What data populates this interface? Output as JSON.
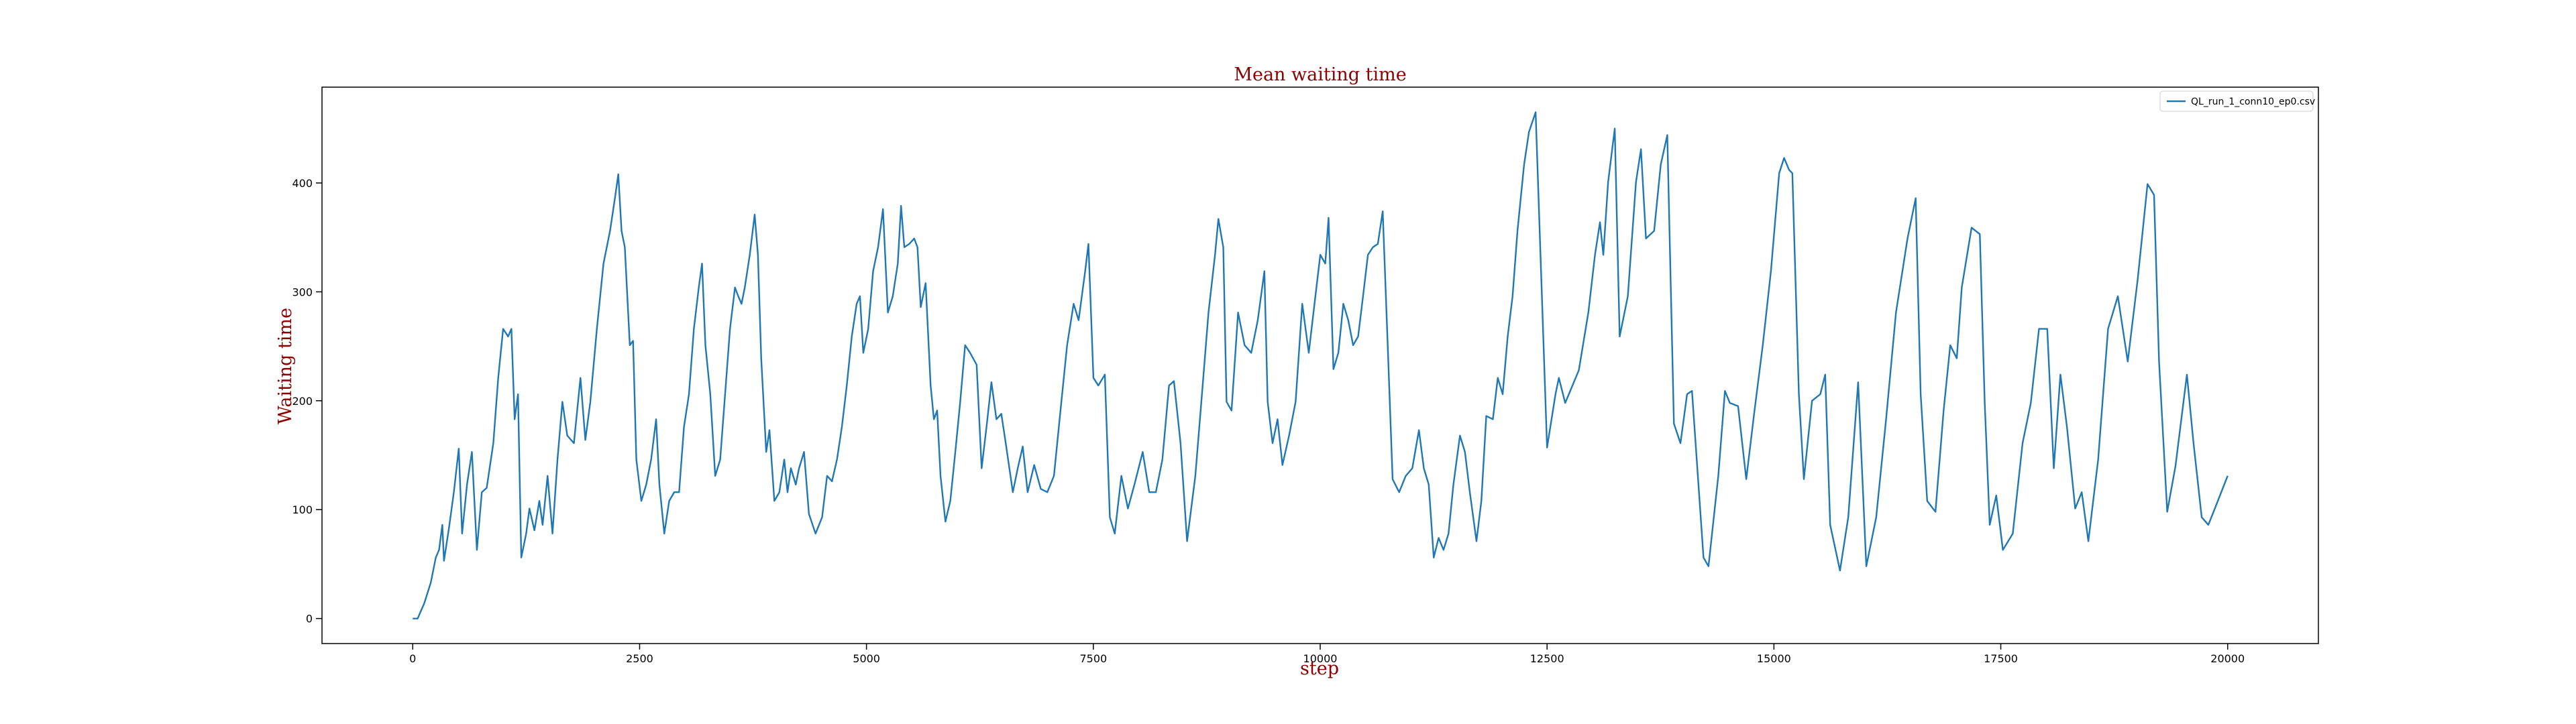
{
  "chart_data": {
    "type": "line",
    "title": "Mean waiting time",
    "x_label": "step",
    "y_label": "Waiting time",
    "xlim": [
      -1000,
      21000
    ],
    "ylim": [
      -23,
      488
    ],
    "xticks": [
      0,
      2500,
      5000,
      7500,
      10000,
      12500,
      15000,
      17500,
      20000
    ],
    "yticks": [
      0,
      100,
      200,
      300,
      400
    ],
    "grid": false,
    "legend": "upper right",
    "x": [
      0,
      54,
      127,
      199,
      254,
      290,
      326,
      344,
      399,
      453,
      507,
      544,
      598,
      652,
      707,
      761,
      815,
      888,
      942,
      996,
      1051,
      1087,
      1123,
      1160,
      1196,
      1250,
      1286,
      1341,
      1395,
      1431,
      1486,
      1540,
      1595,
      1649,
      1703,
      1776,
      1848,
      1902,
      1957,
      2029,
      2102,
      2174,
      2228,
      2265,
      2301,
      2337,
      2392,
      2428,
      2464,
      2519,
      2573,
      2627,
      2682,
      2718,
      2772,
      2826,
      2881,
      2935,
      2989,
      3044,
      3098,
      3152,
      3188,
      3225,
      3279,
      3333,
      3388,
      3442,
      3496,
      3551,
      3587,
      3623,
      3659,
      3714,
      3768,
      3804,
      3840,
      3895,
      3931,
      3985,
      4040,
      4094,
      4130,
      4167,
      4221,
      4257,
      4312,
      4366,
      4439,
      4511,
      4566,
      4620,
      4675,
      4729,
      4783,
      4838,
      4892,
      4928,
      4965,
      5019,
      5073,
      5128,
      5182,
      5236,
      5290,
      5345,
      5381,
      5417,
      5471,
      5526,
      5562,
      5598,
      5652,
      5707,
      5743,
      5779,
      5816,
      5870,
      5924,
      5979,
      6033,
      6087,
      6142,
      6214,
      6269,
      6323,
      6377,
      6432,
      6486,
      6540,
      6613,
      6667,
      6722,
      6776,
      6848,
      6921,
      6993,
      7066,
      7138,
      7211,
      7283,
      7338,
      7410,
      7446,
      7501,
      7555,
      7627,
      7682,
      7736,
      7809,
      7881,
      7953,
      8044,
      8116,
      8189,
      8261,
      8334,
      8388,
      8461,
      8533,
      8624,
      8697,
      8769,
      8841,
      8878,
      8932,
      8968,
      9023,
      9095,
      9167,
      9240,
      9312,
      9385,
      9421,
      9475,
      9530,
      9584,
      9657,
      9729,
      9802,
      9874,
      9947,
      10001,
      10056,
      10092,
      10146,
      10200,
      10255,
      10309,
      10363,
      10418,
      10472,
      10526,
      10581,
      10635,
      10689,
      10744,
      10798,
      10870,
      10943,
      11015,
      11088,
      11142,
      11196,
      11251,
      11305,
      11359,
      11414,
      11468,
      11540,
      11595,
      11649,
      11722,
      11776,
      11830,
      11903,
      11957,
      12011,
      12066,
      12120,
      12174,
      12247,
      12301,
      12374,
      12500,
      12593,
      12630,
      12700,
      12850,
      12955,
      13028,
      13083,
      13120,
      13173,
      13246,
      13300,
      13390,
      13480,
      13535,
      13590,
      13680,
      13753,
      13825,
      13898,
      13970,
      14043,
      14097,
      14224,
      14279,
      14387,
      14460,
      14514,
      14605,
      14695,
      14786,
      14877,
      14967,
      15058,
      15112,
      15167,
      15203,
      15275,
      15330,
      15420,
      15511,
      15565,
      15620,
      15728,
      15819,
      15928,
      16018,
      16127,
      16236,
      16345,
      16472,
      16562,
      16617,
      16689,
      16780,
      16870,
      16943,
      17015,
      17070,
      17178,
      17269,
      17323,
      17378,
      17450,
      17523,
      17632,
      17740,
      17831,
      17921,
      18012,
      18084,
      18157,
      18229,
      18320,
      18392,
      18465,
      18573,
      18682,
      18790,
      18899,
      19008,
      19117,
      19189,
      19244,
      19334,
      19425,
      19551,
      19624,
      19714,
      19787,
      19859,
      20000
    ],
    "series": [
      {
        "name": "QL_run_1_conn10_ep0.csv",
        "color": "#1f77b4",
        "values": [
          0,
          0,
          14,
          33,
          56,
          63,
          86,
          53,
          83,
          116,
          156,
          78,
          123,
          153,
          63,
          116,
          120,
          161,
          221,
          266,
          259,
          266,
          183,
          206,
          56,
          78,
          101,
          81,
          108,
          86,
          131,
          78,
          146,
          199,
          168,
          161,
          221,
          164,
          199,
          266,
          326,
          356,
          386,
          408,
          356,
          341,
          251,
          255,
          146,
          108,
          123,
          146,
          183,
          123,
          78,
          108,
          116,
          116,
          176,
          206,
          266,
          304,
          326,
          251,
          206,
          131,
          146,
          206,
          266,
          304,
          296,
          289,
          304,
          334,
          371,
          334,
          239,
          153,
          173,
          108,
          116,
          146,
          116,
          138,
          123,
          138,
          153,
          96,
          78,
          93,
          131,
          126,
          146,
          176,
          214,
          259,
          289,
          296,
          244,
          266,
          319,
          341,
          376,
          281,
          296,
          326,
          379,
          341,
          344,
          349,
          341,
          286,
          308,
          214,
          183,
          191,
          131,
          89,
          108,
          153,
          199,
          251,
          244,
          233,
          138,
          176,
          217,
          183,
          188,
          158,
          116,
          138,
          158,
          116,
          141,
          119,
          116,
          131,
          191,
          251,
          289,
          274,
          319,
          344,
          221,
          214,
          224,
          93,
          78,
          131,
          101,
          123,
          153,
          116,
          116,
          146,
          214,
          218,
          161,
          71,
          131,
          206,
          281,
          334,
          367,
          341,
          199,
          191,
          281,
          251,
          244,
          274,
          319,
          199,
          161,
          183,
          141,
          168,
          199,
          289,
          244,
          296,
          334,
          326,
          368,
          229,
          244,
          289,
          274,
          251,
          259,
          296,
          334,
          341,
          344,
          374,
          251,
          128,
          116,
          131,
          138,
          173,
          138,
          123,
          56,
          74,
          63,
          78,
          123,
          168,
          153,
          116,
          71,
          108,
          186,
          183,
          221,
          206,
          259,
          296,
          356,
          417,
          447,
          465,
          157,
          206,
          221,
          198,
          228,
          281,
          334,
          364,
          334,
          401,
          450,
          259,
          296,
          401,
          431,
          349,
          356,
          417,
          444,
          179,
          161,
          206,
          209,
          56,
          48,
          131,
          209,
          198,
          195,
          128,
          191,
          251,
          319,
          409,
          423,
          412,
          409,
          206,
          128,
          200,
          206,
          224,
          86,
          44,
          93,
          217,
          48,
          93,
          183,
          281,
          349,
          386,
          206,
          108,
          98,
          191,
          251,
          239,
          304,
          359,
          353,
          198,
          86,
          113,
          63,
          78,
          161,
          198,
          266,
          266,
          138,
          224,
          176,
          101,
          116,
          71,
          146,
          266,
          296,
          236,
          311,
          399,
          389,
          236,
          98,
          140,
          224,
          161,
          93,
          86,
          101,
          131
        ]
      }
    ]
  }
}
